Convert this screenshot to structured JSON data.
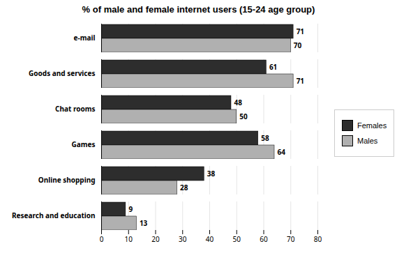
{
  "chart_data": {
    "type": "bar",
    "orientation": "horizontal",
    "title": "% of male and female internet users (15-24 age group)",
    "categories": [
      "e-mail",
      "Goods and services",
      "Chat rooms",
      "Games",
      "Online shopping",
      "Research and education"
    ],
    "series": [
      {
        "name": "Females",
        "color": "#2d2d2d",
        "values": [
          71,
          61,
          48,
          58,
          38,
          9
        ]
      },
      {
        "name": "Males",
        "color": "#b0b0b0",
        "values": [
          70,
          71,
          50,
          64,
          28,
          13
        ]
      }
    ],
    "xlim": [
      0,
      80
    ],
    "xticks": [
      0,
      10,
      20,
      30,
      40,
      50,
      60,
      70,
      80
    ],
    "grid": true,
    "data_labels": true,
    "legend": "right"
  }
}
